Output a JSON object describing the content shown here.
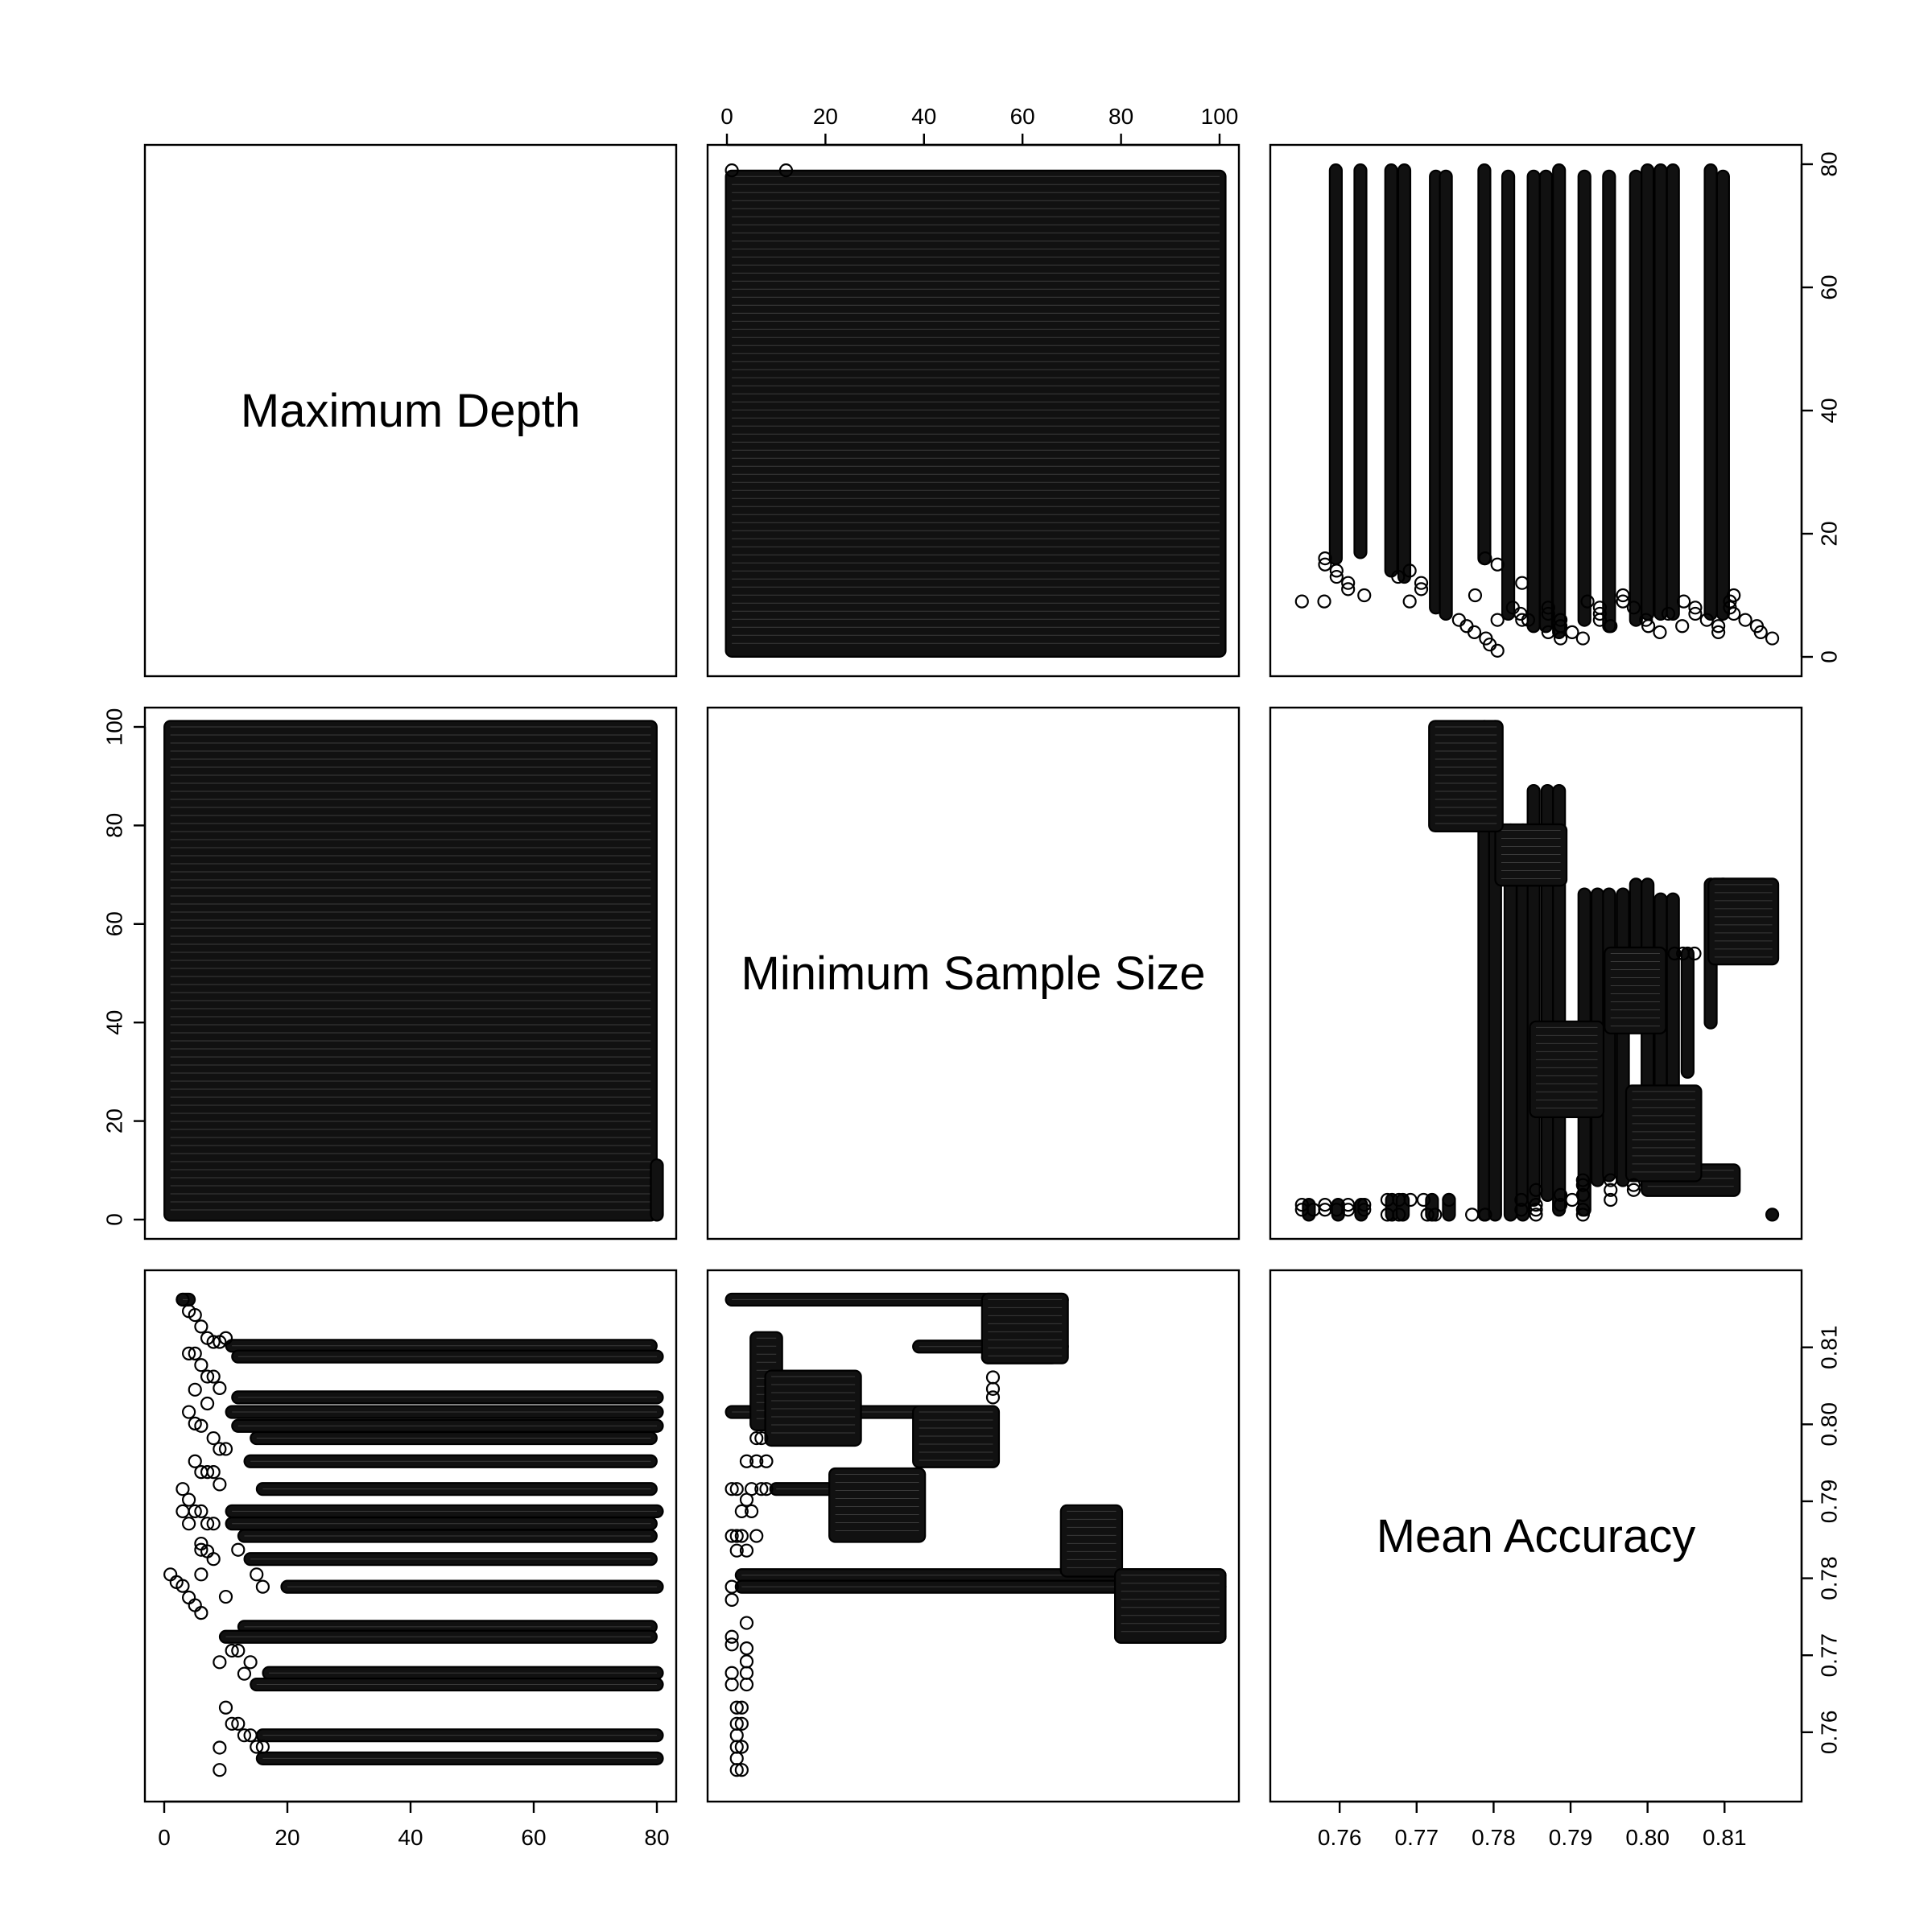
{
  "chart_data": {
    "type": "scatter",
    "title": "",
    "variables": [
      {
        "key": "depth",
        "label": "Maximum Depth",
        "range": [
          0,
          80
        ],
        "ticks": [
          0,
          20,
          40,
          60,
          80
        ],
        "tick_labels": [
          "0",
          "20",
          "40",
          "60",
          "80"
        ]
      },
      {
        "key": "size",
        "label": "Minimum Sample Size",
        "range": [
          0,
          100
        ],
        "ticks": [
          0,
          20,
          40,
          60,
          80,
          100
        ],
        "tick_labels": [
          "0",
          "20",
          "40",
          "60",
          "80",
          "100"
        ]
      },
      {
        "key": "acc",
        "label": "Mean Accuracy",
        "range": [
          0.7535,
          0.8175
        ],
        "ticks": [
          0.76,
          0.77,
          0.78,
          0.79,
          0.8,
          0.81
        ],
        "tick_labels": [
          "0.76",
          "0.77",
          "0.78",
          "0.79",
          "0.80",
          "0.81"
        ]
      }
    ],
    "grid": false,
    "marker": "open-circle",
    "color": "#000000",
    "depth_size": {
      "depth_range": [
        1,
        79
      ],
      "size_range": [
        1,
        100
      ],
      "note_region": "full grid of depth 1-79 by sample size 1-100 (densely filled)"
    },
    "depth_acc_bands": [
      {
        "acc": 0.8162,
        "depth_start": 3,
        "depth_end": 4
      },
      {
        "acc": 0.8102,
        "depth_start": 11,
        "depth_end": 79
      },
      {
        "acc": 0.8088,
        "depth_start": 12,
        "depth_end": 80
      },
      {
        "acc": 0.8035,
        "depth_start": 12,
        "depth_end": 80
      },
      {
        "acc": 0.8016,
        "depth_start": 11,
        "depth_end": 80
      },
      {
        "acc": 0.7998,
        "depth_start": 12,
        "depth_end": 80
      },
      {
        "acc": 0.7982,
        "depth_start": 15,
        "depth_end": 79
      },
      {
        "acc": 0.7952,
        "depth_start": 14,
        "depth_end": 79
      },
      {
        "acc": 0.7916,
        "depth_start": 16,
        "depth_end": 79
      },
      {
        "acc": 0.7887,
        "depth_start": 11,
        "depth_end": 80
      },
      {
        "acc": 0.7871,
        "depth_start": 11,
        "depth_end": 79
      },
      {
        "acc": 0.7855,
        "depth_start": 13,
        "depth_end": 79
      },
      {
        "acc": 0.7825,
        "depth_start": 14,
        "depth_end": 79
      },
      {
        "acc": 0.7789,
        "depth_start": 20,
        "depth_end": 80
      },
      {
        "acc": 0.7737,
        "depth_start": 13,
        "depth_end": 79
      },
      {
        "acc": 0.7724,
        "depth_start": 10,
        "depth_end": 79
      },
      {
        "acc": 0.7677,
        "depth_start": 17,
        "depth_end": 80
      },
      {
        "acc": 0.7662,
        "depth_start": 15,
        "depth_end": 80
      },
      {
        "acc": 0.7596,
        "depth_start": 16,
        "depth_end": 80
      },
      {
        "acc": 0.7566,
        "depth_start": 16,
        "depth_end": 80
      }
    ],
    "depth_acc_points": [
      [
        1,
        0.7805
      ],
      [
        2,
        0.7795
      ],
      [
        3,
        0.779
      ],
      [
        4,
        0.7775
      ],
      [
        5,
        0.7765
      ],
      [
        6,
        0.7755
      ],
      [
        3,
        0.8162
      ],
      [
        4,
        0.8147
      ],
      [
        5,
        0.8142
      ],
      [
        6,
        0.8127
      ],
      [
        7,
        0.8112
      ],
      [
        8,
        0.8107
      ],
      [
        9,
        0.8107
      ],
      [
        10,
        0.8112
      ],
      [
        4,
        0.8092
      ],
      [
        5,
        0.8092
      ],
      [
        6,
        0.8077
      ],
      [
        7,
        0.8062
      ],
      [
        8,
        0.8062
      ],
      [
        9,
        0.8047
      ],
      [
        5,
        0.8045
      ],
      [
        7,
        0.8027
      ],
      [
        4,
        0.8016
      ],
      [
        5,
        0.8001
      ],
      [
        6,
        0.7998
      ],
      [
        8,
        0.7982
      ],
      [
        9,
        0.7968
      ],
      [
        10,
        0.7968
      ],
      [
        5,
        0.7952
      ],
      [
        6,
        0.7938
      ],
      [
        7,
        0.7938
      ],
      [
        8,
        0.7938
      ],
      [
        9,
        0.7922
      ],
      [
        3,
        0.7916
      ],
      [
        4,
        0.7902
      ],
      [
        5,
        0.7887
      ],
      [
        6,
        0.7887
      ],
      [
        7,
        0.7871
      ],
      [
        8,
        0.7871
      ],
      [
        3,
        0.7887
      ],
      [
        4,
        0.7871
      ],
      [
        6,
        0.7845
      ],
      [
        7,
        0.7835
      ],
      [
        8,
        0.7825
      ],
      [
        6,
        0.7805
      ],
      [
        6,
        0.7837
      ],
      [
        9,
        0.7691
      ],
      [
        10,
        0.7776
      ],
      [
        11,
        0.7706
      ],
      [
        12,
        0.7706
      ],
      [
        13,
        0.7676
      ],
      [
        14,
        0.7691
      ],
      [
        15,
        0.7805
      ],
      [
        16,
        0.7789
      ],
      [
        12,
        0.7837
      ],
      [
        10,
        0.7632
      ],
      [
        11,
        0.7611
      ],
      [
        12,
        0.7611
      ],
      [
        13,
        0.7596
      ],
      [
        14,
        0.7596
      ],
      [
        15,
        0.7581
      ],
      [
        16,
        0.7581
      ],
      [
        9,
        0.758
      ],
      [
        9,
        0.7551
      ]
    ],
    "depth_acc_columns": [
      {
        "acc": 0.7595,
        "depth_start": 16,
        "depth_end": 79
      },
      {
        "acc": 0.7627,
        "depth_start": 17,
        "depth_end": 79
      },
      {
        "acc": 0.7667,
        "depth_start": 14,
        "depth_end": 79
      },
      {
        "acc": 0.7684,
        "depth_start": 13,
        "depth_end": 79
      },
      {
        "acc": 0.7725,
        "depth_start": 8,
        "depth_end": 78
      },
      {
        "acc": 0.7738,
        "depth_start": 7,
        "depth_end": 78
      },
      {
        "acc": 0.7788,
        "depth_start": 16,
        "depth_end": 79
      },
      {
        "acc": 0.7819,
        "depth_start": 7,
        "depth_end": 78
      },
      {
        "acc": 0.7852,
        "depth_start": 5,
        "depth_end": 78
      },
      {
        "acc": 0.7868,
        "depth_start": 5,
        "depth_end": 78
      },
      {
        "acc": 0.7885,
        "depth_start": 4,
        "depth_end": 79
      },
      {
        "acc": 0.7918,
        "depth_start": 6,
        "depth_end": 78
      },
      {
        "acc": 0.795,
        "depth_start": 5,
        "depth_end": 78
      },
      {
        "acc": 0.7985,
        "depth_start": 6,
        "depth_end": 78
      },
      {
        "acc": 0.8,
        "depth_start": 7,
        "depth_end": 79
      },
      {
        "acc": 0.8017,
        "depth_start": 7,
        "depth_end": 79
      },
      {
        "acc": 0.8033,
        "depth_start": 7,
        "depth_end": 79
      },
      {
        "acc": 0.8082,
        "depth_start": 7,
        "depth_end": 79
      },
      {
        "acc": 0.8098,
        "depth_start": 7,
        "depth_end": 78
      }
    ],
    "size_acc_bands": [
      {
        "acc": 0.8162,
        "size_start": 1,
        "size_end": 68
      },
      {
        "acc": 0.8101,
        "size_start": 39,
        "size_end": 68
      },
      {
        "acc": 0.8087,
        "size_start": 53,
        "size_end": 66
      },
      {
        "acc": 0.8016,
        "size_start": 1,
        "size_end": 40
      },
      {
        "acc": 0.7916,
        "size_start": 10,
        "size_end": 31
      },
      {
        "acc": 0.7804,
        "size_start": 3,
        "size_end": 100
      },
      {
        "acc": 0.7789,
        "size_start": 3,
        "size_end": 100
      },
      {
        "acc": 0.7724,
        "size_start": 80,
        "size_end": 100
      }
    ],
    "size_acc_blocks": [
      {
        "size_start": 6,
        "size_end": 10,
        "acc_low": 0.8,
        "acc_high": 0.8112
      },
      {
        "size_start": 9,
        "size_end": 26,
        "acc_low": 0.798,
        "acc_high": 0.8062
      },
      {
        "size_start": 39,
        "size_end": 54,
        "acc_low": 0.7952,
        "acc_high": 0.8016
      },
      {
        "size_start": 22,
        "size_end": 39,
        "acc_low": 0.7855,
        "acc_high": 0.7935
      },
      {
        "size_start": 69,
        "size_end": 79,
        "acc_low": 0.781,
        "acc_high": 0.7887
      },
      {
        "size_start": 80,
        "size_end": 100,
        "acc_low": 0.7724,
        "acc_high": 0.7804
      },
      {
        "size_start": 53,
        "size_end": 68,
        "acc_low": 0.8087,
        "acc_high": 0.8162
      }
    ],
    "size_acc_points": [
      [
        1,
        0.7789
      ],
      [
        1,
        0.7772
      ],
      [
        1,
        0.7724
      ],
      [
        1,
        0.7714
      ],
      [
        1,
        0.7677
      ],
      [
        1,
        0.7662
      ],
      [
        2,
        0.7632
      ],
      [
        2,
        0.7611
      ],
      [
        2,
        0.7596
      ],
      [
        2,
        0.7581
      ],
      [
        2,
        0.7566
      ],
      [
        2,
        0.7551
      ],
      [
        3,
        0.7551
      ],
      [
        3,
        0.7581
      ],
      [
        3,
        0.7611
      ],
      [
        3,
        0.7632
      ],
      [
        4,
        0.7742
      ],
      [
        4,
        0.7709
      ],
      [
        4,
        0.7692
      ],
      [
        4,
        0.7677
      ],
      [
        4,
        0.7662
      ],
      [
        1,
        0.7855
      ],
      [
        2,
        0.7855
      ],
      [
        3,
        0.7855
      ],
      [
        6,
        0.7855
      ],
      [
        2,
        0.7836
      ],
      [
        4,
        0.7836
      ],
      [
        3,
        0.7887
      ],
      [
        4,
        0.7902
      ],
      [
        5,
        0.7887
      ],
      [
        4,
        0.7952
      ],
      [
        6,
        0.7952
      ],
      [
        8,
        0.7952
      ],
      [
        6,
        0.7982
      ],
      [
        7,
        0.7982
      ],
      [
        1,
        0.7916
      ],
      [
        2,
        0.7916
      ],
      [
        5,
        0.7916
      ],
      [
        7,
        0.7916
      ],
      [
        8,
        0.7916
      ],
      [
        54,
        0.8035
      ],
      [
        54,
        0.8046
      ],
      [
        54,
        0.8061
      ]
    ],
    "depth_size_acc_note": "",
    "size_acc_columns": [
      {
        "acc": 0.756,
        "size_start": 1,
        "size_end": 3
      },
      {
        "acc": 0.7598,
        "size_start": 1,
        "size_end": 3
      },
      {
        "acc": 0.7628,
        "size_start": 1,
        "size_end": 3
      },
      {
        "acc": 0.7668,
        "size_start": 1,
        "size_end": 4
      },
      {
        "acc": 0.7682,
        "size_start": 1,
        "size_end": 4
      },
      {
        "acc": 0.772,
        "size_start": 1,
        "size_end": 4
      },
      {
        "acc": 0.7742,
        "size_start": 1,
        "size_end": 4
      },
      {
        "acc": 0.7788,
        "size_start": 1,
        "size_end": 100
      },
      {
        "acc": 0.7802,
        "size_start": 1,
        "size_end": 100
      },
      {
        "acc": 0.7822,
        "size_start": 1,
        "size_end": 79
      },
      {
        "acc": 0.7838,
        "size_start": 1,
        "size_end": 79
      },
      {
        "acc": 0.7852,
        "size_start": 4,
        "size_end": 87
      },
      {
        "acc": 0.787,
        "size_start": 5,
        "size_end": 87
      },
      {
        "acc": 0.7885,
        "size_start": 2,
        "size_end": 87
      },
      {
        "acc": 0.7918,
        "size_start": 2,
        "size_end": 66
      },
      {
        "acc": 0.7935,
        "size_start": 8,
        "size_end": 66
      },
      {
        "acc": 0.795,
        "size_start": 9,
        "size_end": 66
      },
      {
        "acc": 0.7968,
        "size_start": 8,
        "size_end": 66
      },
      {
        "acc": 0.7985,
        "size_start": 40,
        "size_end": 68
      },
      {
        "acc": 0.8,
        "size_start": 7,
        "size_end": 68
      },
      {
        "acc": 0.8017,
        "size_start": 8,
        "size_end": 65
      },
      {
        "acc": 0.8033,
        "size_start": 7,
        "size_end": 65
      },
      {
        "acc": 0.8052,
        "size_start": 30,
        "size_end": 54
      },
      {
        "acc": 0.8082,
        "size_start": 40,
        "size_end": 68
      },
      {
        "acc": 0.8098,
        "size_start": 56,
        "size_end": 68
      },
      {
        "acc": 0.8162,
        "size_start": 1,
        "size_end": 1
      }
    ]
  }
}
